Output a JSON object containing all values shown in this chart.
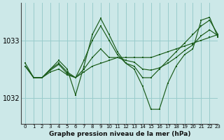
{
  "background_color": "#cce8e8",
  "grid_color": "#99cccc",
  "line_color": "#1a5c1a",
  "xlabel": "Graphe pression niveau de la mer (hPa)",
  "yticks": [
    1032,
    1033
  ],
  "xlim": [
    -0.5,
    23
  ],
  "ylim": [
    1031.55,
    1033.65
  ],
  "series": [
    {
      "x": [
        0,
        1,
        2,
        3,
        4,
        5,
        6,
        7,
        8,
        9,
        10,
        11,
        12,
        13,
        14,
        15,
        16,
        17,
        18,
        19,
        20,
        21,
        22,
        23
      ],
      "y": [
        1032.55,
        1032.35,
        1032.35,
        1032.45,
        1032.5,
        1032.4,
        1032.35,
        1032.45,
        1032.55,
        1032.6,
        1032.65,
        1032.7,
        1032.7,
        1032.7,
        1032.7,
        1032.7,
        1032.75,
        1032.8,
        1032.85,
        1032.9,
        1032.95,
        1033.0,
        1033.05,
        1033.1
      ]
    },
    {
      "x": [
        0,
        1,
        2,
        3,
        4,
        5,
        6,
        7,
        8,
        9,
        10,
        11,
        12,
        13,
        14,
        15,
        16,
        17,
        18,
        19,
        20,
        21,
        22,
        23
      ],
      "y": [
        1032.55,
        1032.35,
        1032.35,
        1032.5,
        1032.6,
        1032.45,
        1032.35,
        1032.65,
        1033.0,
        1033.25,
        1033.0,
        1032.75,
        1032.6,
        1032.55,
        1032.35,
        1032.35,
        1032.5,
        1032.65,
        1032.8,
        1032.95,
        1033.1,
        1033.25,
        1033.35,
        1033.1
      ]
    },
    {
      "x": [
        0,
        1,
        2,
        3,
        4,
        5,
        6,
        7,
        8,
        9,
        10,
        11,
        12,
        13,
        14,
        15,
        16,
        17,
        18,
        19,
        20,
        21,
        22,
        23
      ],
      "y": [
        1032.6,
        1032.35,
        1032.35,
        1032.5,
        1032.65,
        1032.5,
        1032.05,
        1032.55,
        1033.1,
        1033.38,
        1033.1,
        1032.8,
        1032.6,
        1032.5,
        1032.2,
        1031.8,
        1031.8,
        1032.25,
        1032.55,
        1032.75,
        1032.85,
        1033.35,
        1033.4,
        1033.05
      ]
    },
    {
      "x": [
        0,
        1,
        2,
        3,
        4,
        5,
        6,
        7,
        8,
        9,
        10,
        11,
        12,
        13,
        14,
        15,
        16,
        17,
        18,
        19,
        20,
        21,
        22,
        23
      ],
      "y": [
        1032.55,
        1032.35,
        1032.35,
        1032.48,
        1032.58,
        1032.42,
        1032.35,
        1032.5,
        1032.7,
        1032.85,
        1032.7,
        1032.7,
        1032.65,
        1032.62,
        1032.5,
        1032.48,
        1032.52,
        1032.6,
        1032.7,
        1032.82,
        1032.92,
        1033.08,
        1033.18,
        1033.08
      ]
    }
  ]
}
